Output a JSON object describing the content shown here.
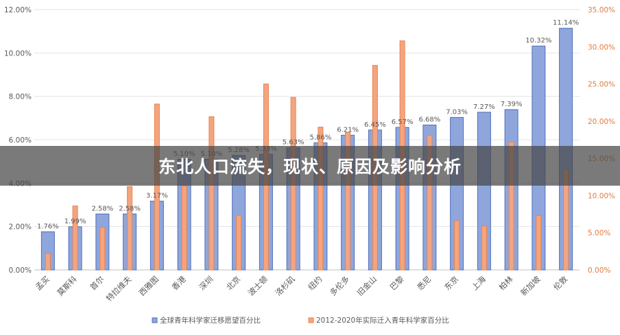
{
  "chart_data": {
    "type": "bar",
    "categories": [
      "孟买",
      "莫斯科",
      "首尔",
      "特拉维夫",
      "西雅图",
      "香港",
      "深圳",
      "北京",
      "波士顿",
      "洛杉矶",
      "纽约",
      "多伦多",
      "旧金山",
      "巴黎",
      "悉尼",
      "东京",
      "上海",
      "柏林",
      "新加坡",
      "伦敦"
    ],
    "series": [
      {
        "name": "全球青年科学家迁移愿望百分比",
        "axis": "left",
        "color": "#8fa6dc",
        "values": [
          1.76,
          1.99,
          2.58,
          2.58,
          3.17,
          5.1,
          5.1,
          5.28,
          5.33,
          5.63,
          5.86,
          6.21,
          6.45,
          6.57,
          6.68,
          7.03,
          7.27,
          7.39,
          10.32,
          11.14
        ],
        "labels": [
          "1.76%",
          "1.99%",
          "2.58%",
          "2.58%",
          "3.17%",
          "5.10%",
          "5.10%",
          "5.28%",
          "5.33%",
          "5.63%",
          "5.86%",
          "6.21%",
          "6.45%",
          "6.57%",
          "6.68%",
          "7.03%",
          "7.27%",
          "7.39%",
          "10.32%",
          "11.14%"
        ]
      },
      {
        "name": "2012-2020年实际迁入青年科学家百分比",
        "axis": "right",
        "color": "#f4a57f",
        "values": [
          2.2,
          8.6,
          5.7,
          11.2,
          22.3,
          11.3,
          20.6,
          7.3,
          25.0,
          23.2,
          19.2,
          18.5,
          27.5,
          30.8,
          18.1,
          6.6,
          5.9,
          17.2,
          7.3,
          13.4
        ]
      }
    ],
    "y_left": {
      "min": 0,
      "max": 12,
      "ticks": [
        "0.00%",
        "2.00%",
        "4.00%",
        "6.00%",
        "8.00%",
        "10.00%",
        "12.00%"
      ]
    },
    "y_right": {
      "min": 0,
      "max": 35,
      "ticks": [
        "0.00%",
        "5.00%",
        "10.00%",
        "15.00%",
        "20.00%",
        "25.00%",
        "30.00%",
        "35.00%"
      ]
    },
    "legend_position": "bottom",
    "grid": true
  },
  "banner": {
    "title": "东北人口流失，现状、原因及影响分析"
  }
}
